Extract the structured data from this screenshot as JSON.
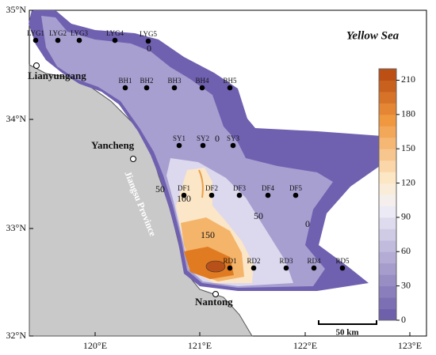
{
  "map": {
    "title": "Yellow Sea",
    "latitude_labels": [
      "35°N",
      "34°N",
      "33°N",
      "32°N"
    ],
    "longitude_labels": [
      "120°E",
      "121°E",
      "122°E",
      "123°E"
    ],
    "stations": [
      "LYG1",
      "LYG2",
      "LYG3",
      "LYG4",
      "LYG5",
      "BH1",
      "BH2",
      "BH3",
      "BH4",
      "BH5",
      "SY1",
      "SY2",
      "SY3",
      "DF1",
      "DF2",
      "DF3",
      "DF4",
      "DF5",
      "RD1",
      "RD2",
      "RD3",
      "RD4",
      "RD5"
    ],
    "cities": [
      "Lianyungang",
      "Yancheng",
      "Nantong"
    ],
    "province": "Jiangsu Province",
    "contour_labels": [
      "0",
      "0",
      "50",
      "100",
      "50",
      "150",
      "0"
    ],
    "colorbar": {
      "range": [
        0,
        220
      ],
      "ticks": [
        0,
        30,
        60,
        90,
        120,
        150,
        180,
        210
      ]
    },
    "scale_bar": "50 km"
  }
}
